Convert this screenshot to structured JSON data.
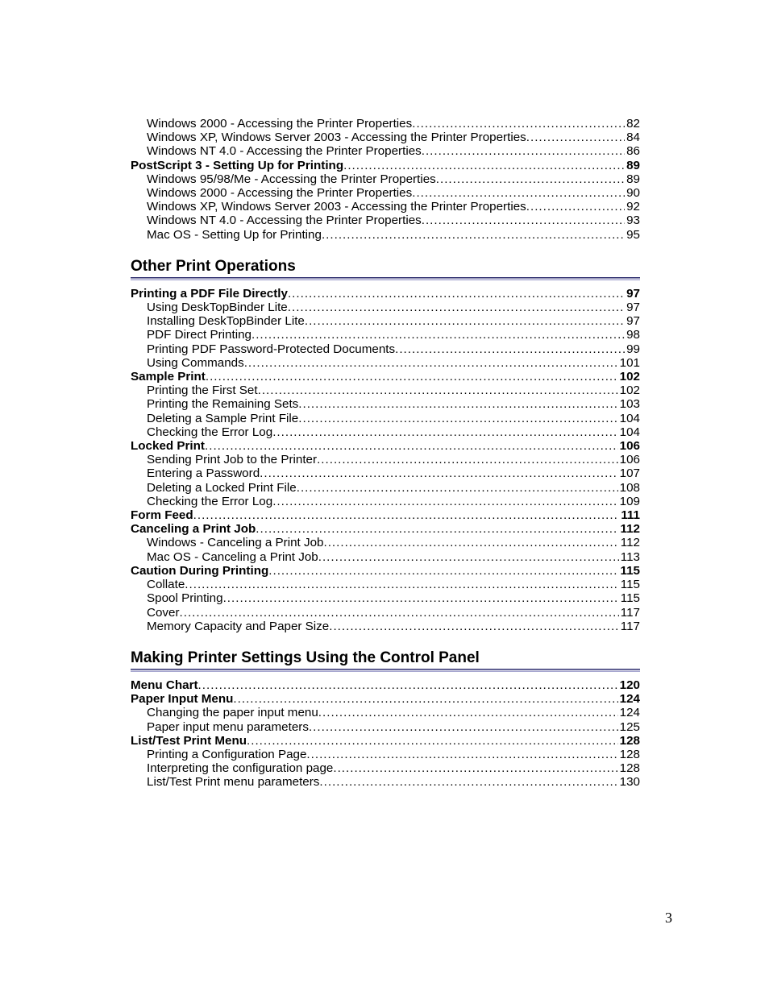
{
  "colors": {
    "text": "#000000",
    "background": "#ffffff",
    "rule_top": "#2d2d6d",
    "rule_bottom": "#a7a7cf"
  },
  "typography": {
    "body_font": "Arial, Helvetica, sans-serif",
    "body_size_pt": 11,
    "heading_font": "Trebuchet MS, Segoe UI, Arial, sans-serif",
    "heading_size_pt": 14,
    "heading_weight": "bold",
    "footer_font": "Times New Roman, Times, serif",
    "footer_size_pt": 13
  },
  "footer_page_number": "3",
  "pre_entries": [
    {
      "level": "sub",
      "title": "Windows 2000 - Accessing the Printer Properties",
      "page": "82"
    },
    {
      "level": "sub",
      "title": "Windows XP, Windows Server 2003 - Accessing the Printer Properties",
      "page": "84"
    },
    {
      "level": "sub",
      "title": "Windows NT 4.0 - Accessing the Printer Properties",
      "page": "86"
    },
    {
      "level": "section",
      "title": "PostScript 3 - Setting Up for Printing",
      "page": "89"
    },
    {
      "level": "sub",
      "title": "Windows 95/98/Me - Accessing the Printer Properties",
      "page": "89"
    },
    {
      "level": "sub",
      "title": "Windows 2000 - Accessing the Printer Properties",
      "page": "90"
    },
    {
      "level": "sub",
      "title": "Windows XP, Windows Server 2003 - Accessing the Printer Properties",
      "page": "92"
    },
    {
      "level": "sub",
      "title": "Windows NT 4.0 - Accessing the Printer Properties",
      "page": "93"
    },
    {
      "level": "sub",
      "title": "Mac OS - Setting Up for Printing",
      "page": "95"
    }
  ],
  "sections": [
    {
      "heading": "Other Print Operations",
      "entries": [
        {
          "level": "section",
          "title": "Printing a PDF File Directly",
          "page": "97"
        },
        {
          "level": "sub",
          "title": "Using DeskTopBinder Lite",
          "page": "97"
        },
        {
          "level": "sub",
          "title": "Installing DeskTopBinder Lite",
          "page": "97"
        },
        {
          "level": "sub",
          "title": "PDF Direct Printing",
          "page": "98"
        },
        {
          "level": "sub",
          "title": "Printing PDF Password-Protected Documents",
          "page": "99"
        },
        {
          "level": "sub",
          "title": "Using Commands",
          "page": "101"
        },
        {
          "level": "section",
          "title": "Sample Print",
          "page": "102"
        },
        {
          "level": "sub",
          "title": "Printing the First Set",
          "page": "102"
        },
        {
          "level": "sub",
          "title": "Printing the Remaining Sets",
          "page": "103"
        },
        {
          "level": "sub",
          "title": "Deleting a Sample Print File",
          "page": "104"
        },
        {
          "level": "sub",
          "title": "Checking the Error Log",
          "page": "104"
        },
        {
          "level": "section",
          "title": "Locked Print",
          "page": "106"
        },
        {
          "level": "sub",
          "title": "Sending Print Job to the Printer",
          "page": "106"
        },
        {
          "level": "sub",
          "title": "Entering a Password",
          "page": "107"
        },
        {
          "level": "sub",
          "title": "Deleting a Locked Print File",
          "page": "108"
        },
        {
          "level": "sub",
          "title": "Checking the Error Log",
          "page": "109"
        },
        {
          "level": "section",
          "title": "Form Feed",
          "page": "111"
        },
        {
          "level": "section",
          "title": "Canceling a Print Job",
          "page": "112"
        },
        {
          "level": "sub",
          "title": "Windows - Canceling a Print Job",
          "page": "112"
        },
        {
          "level": "sub",
          "title": "Mac OS - Canceling a Print Job",
          "page": "113"
        },
        {
          "level": "section",
          "title": "Caution During Printing",
          "page": "115"
        },
        {
          "level": "sub",
          "title": "Collate",
          "page": "115"
        },
        {
          "level": "sub",
          "title": "Spool Printing",
          "page": "115"
        },
        {
          "level": "sub",
          "title": "Cover",
          "page": "117"
        },
        {
          "level": "sub",
          "title": "Memory Capacity and Paper Size",
          "page": "117"
        }
      ]
    },
    {
      "heading": "Making Printer Settings Using the Control Panel",
      "entries": [
        {
          "level": "section",
          "title": "Menu Chart",
          "page": "120"
        },
        {
          "level": "section",
          "title": "Paper Input Menu",
          "page": "124"
        },
        {
          "level": "sub",
          "title": "Changing the paper input menu",
          "page": "124"
        },
        {
          "level": "sub",
          "title": "Paper input menu parameters",
          "page": "125"
        },
        {
          "level": "section",
          "title": "List/Test Print Menu",
          "page": "128"
        },
        {
          "level": "sub",
          "title": "Printing a Configuration Page",
          "page": "128"
        },
        {
          "level": "sub",
          "title": "Interpreting the configuration page",
          "page": "128"
        },
        {
          "level": "sub",
          "title": "List/Test Print menu parameters",
          "page": "130"
        }
      ]
    }
  ]
}
